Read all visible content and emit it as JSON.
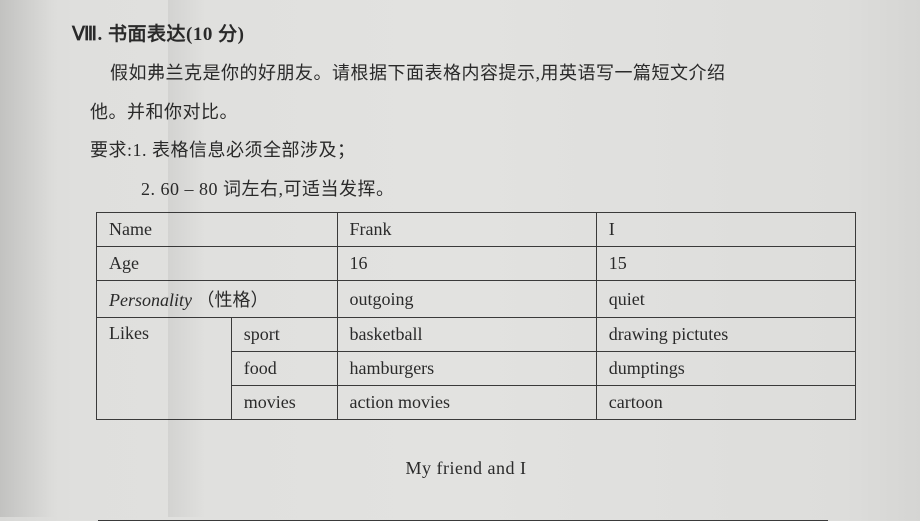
{
  "header": {
    "section_num": "Ⅷ.",
    "section_title": "书面表达",
    "points": "(10 分)"
  },
  "prompt": {
    "line1": "假如弗兰克是你的好朋友。请根据下面表格内容提示,用英语写一篇短文介绍",
    "line2": "他。并和你对比。",
    "req_label": "要求:",
    "req1": "1. 表格信息必须全部涉及；",
    "req2": "2. 60 – 80 词左右,可适当发挥。"
  },
  "table": {
    "rows": {
      "name": {
        "label": "Name",
        "frank": "Frank",
        "i": "I"
      },
      "age": {
        "label": "Age",
        "frank": "16",
        "i": "15"
      },
      "personality": {
        "label_en": "Personality",
        "label_zh": "（性格）",
        "frank": "outgoing",
        "i": "quiet"
      },
      "likes_label": "Likes",
      "sport": {
        "sub": "sport",
        "frank": "basketball",
        "i": "drawing pictutes"
      },
      "food": {
        "sub": "food",
        "frank": "hamburgers",
        "i": "dumptings"
      },
      "movies": {
        "sub": "movies",
        "frank": "action movies",
        "i": "cartoon"
      }
    }
  },
  "essay": {
    "title": "My friend and I"
  },
  "style": {
    "text_color": "#2a2a2a",
    "border_color": "#3a3a3a",
    "bg_tone": "#e0e0de"
  }
}
